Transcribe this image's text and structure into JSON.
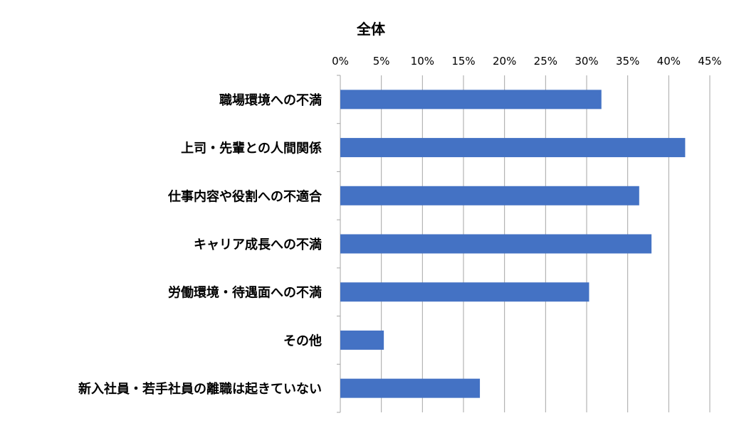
{
  "chart_data": {
    "type": "bar",
    "orientation": "horizontal",
    "title": "全体",
    "categories": [
      "職場環境への不満",
      "上司・先輩との人間関係",
      "仕事内容や役割への不適合",
      "キャリア成長への不満",
      "労働環境・待遇面への不満",
      "その他",
      "新入社員・若手社員の離職は起きていない"
    ],
    "values": [
      31.8,
      42.0,
      36.4,
      37.9,
      30.3,
      5.3,
      17.0
    ],
    "xlim": [
      0,
      45
    ],
    "x_ticks": [
      "0%",
      "5%",
      "10%",
      "15%",
      "20%",
      "25%",
      "30%",
      "35%",
      "40%",
      "45%"
    ],
    "x_axis_position": "top",
    "grid": "vertical",
    "legend": "none",
    "colors": {
      "bar": "#4472C4",
      "grid": "#A6A6A6",
      "axis": "#A6A6A6",
      "text": "#000000"
    }
  }
}
